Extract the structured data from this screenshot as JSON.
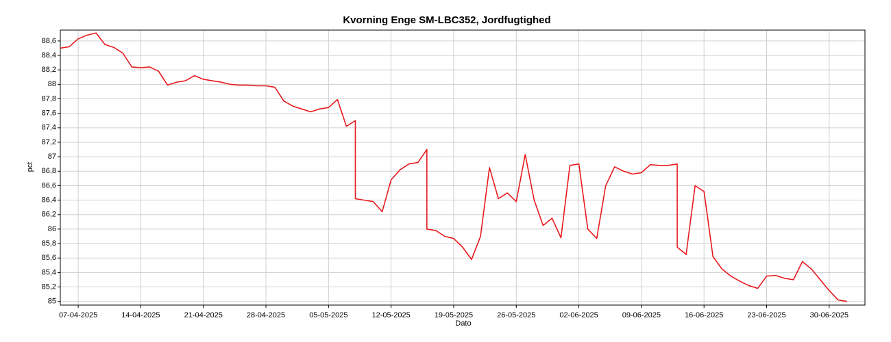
{
  "chart_data": {
    "type": "line",
    "title": "Kvorning Enge SM-LBC352, Jordfugtighed",
    "x_label": "Dato",
    "y_label": "pct",
    "color": "#e8191c",
    "grid": true,
    "x": [
      "05-04-2025",
      "06-04-2025",
      "07-04-2025",
      "08-04-2025",
      "09-04-2025",
      "10-04-2025",
      "11-04-2025",
      "12-04-2025",
      "13-04-2025",
      "14-04-2025",
      "15-04-2025",
      "16-04-2025",
      "17-04-2025",
      "18-04-2025",
      "19-04-2025",
      "20-04-2025",
      "21-04-2025",
      "22-04-2025",
      "23-04-2025",
      "24-04-2025",
      "25-04-2025",
      "26-04-2025",
      "27-04-2025",
      "28-04-2025",
      "29-04-2025",
      "30-04-2025",
      "01-05-2025",
      "02-05-2025",
      "03-05-2025",
      "04-05-2025",
      "05-05-2025",
      "06-05-2025",
      "07-05-2025",
      "08-05-2025",
      "08-05-2025",
      "09-05-2025",
      "10-05-2025",
      "11-05-2025",
      "12-05-2025",
      "13-05-2025",
      "14-05-2025",
      "15-05-2025",
      "16-05-2025",
      "16-05-2025",
      "17-05-2025",
      "18-05-2025",
      "19-05-2025",
      "20-05-2025",
      "21-05-2025",
      "22-05-2025",
      "23-05-2025",
      "24-05-2025",
      "25-05-2025",
      "26-05-2025",
      "27-05-2025",
      "28-05-2025",
      "29-05-2025",
      "30-05-2025",
      "31-05-2025",
      "01-06-2025",
      "02-06-2025",
      "03-06-2025",
      "04-06-2025",
      "05-06-2025",
      "06-06-2025",
      "07-06-2025",
      "08-06-2025",
      "09-06-2025",
      "10-06-2025",
      "11-06-2025",
      "12-06-2025",
      "13-06-2025",
      "13-06-2025",
      "14-06-2025",
      "15-06-2025",
      "16-06-2025",
      "17-06-2025",
      "18-06-2025",
      "19-06-2025",
      "20-06-2025",
      "21-06-2025",
      "22-06-2025",
      "23-06-2025",
      "24-06-2025",
      "25-06-2025",
      "26-06-2025",
      "27-06-2025",
      "28-06-2025",
      "29-06-2025",
      "30-06-2025",
      "01-07-2025",
      "02-07-2025"
    ],
    "values": [
      88.5,
      88.52,
      88.63,
      88.68,
      88.71,
      88.55,
      88.51,
      88.43,
      88.24,
      88.23,
      88.24,
      88.18,
      87.99,
      88.03,
      88.05,
      88.12,
      88.07,
      88.05,
      88.03,
      88.0,
      87.99,
      87.99,
      87.98,
      87.98,
      87.96,
      87.77,
      87.7,
      87.66,
      87.62,
      87.66,
      87.68,
      87.79,
      87.42,
      87.5,
      86.42,
      86.4,
      86.38,
      86.24,
      86.68,
      86.82,
      86.9,
      86.92,
      87.1,
      86.0,
      85.98,
      85.9,
      85.87,
      85.75,
      85.58,
      85.9,
      86.85,
      86.42,
      86.5,
      86.38,
      87.03,
      86.4,
      86.05,
      86.15,
      85.88,
      86.88,
      86.9,
      86.0,
      85.87,
      86.6,
      86.86,
      86.8,
      86.76,
      86.78,
      86.89,
      86.88,
      86.88,
      86.9,
      85.75,
      85.65,
      86.6,
      86.52,
      85.62,
      85.45,
      85.35,
      85.28,
      85.22,
      85.18,
      85.35,
      85.36,
      85.32,
      85.3,
      85.55,
      85.45,
      85.3,
      85.15,
      85.02,
      85.0
    ],
    "xlim": [
      "05-04-2025",
      "04-07-2025"
    ],
    "xticks": [
      "07-04-2025",
      "14-04-2025",
      "21-04-2025",
      "28-04-2025",
      "05-05-2025",
      "12-05-2025",
      "19-05-2025",
      "26-05-2025",
      "02-06-2025",
      "09-06-2025",
      "16-06-2025",
      "23-06-2025",
      "30-06-2025"
    ],
    "ylim": [
      84.95,
      88.75
    ],
    "yticks": [
      85,
      {
        "value": 85.2,
        "label": "85,2"
      },
      {
        "value": 85.4,
        "label": "85,4"
      },
      {
        "value": 85.6,
        "label": "85,6"
      },
      {
        "value": 85.8,
        "label": "85,8"
      },
      86,
      {
        "value": 86.2,
        "label": "86,2"
      },
      {
        "value": 86.4,
        "label": "86,4"
      },
      {
        "value": 86.6,
        "label": "86,6"
      },
      {
        "value": 86.8,
        "label": "86,8"
      },
      87,
      {
        "value": 87.2,
        "label": "87,2"
      },
      {
        "value": 87.4,
        "label": "87,4"
      },
      {
        "value": 87.6,
        "label": "87,6"
      },
      {
        "value": 87.8,
        "label": "87,8"
      },
      88,
      {
        "value": 88.2,
        "label": "88,2"
      },
      {
        "value": 88.4,
        "label": "88,4"
      },
      {
        "value": 88.6,
        "label": "88,6"
      }
    ]
  }
}
